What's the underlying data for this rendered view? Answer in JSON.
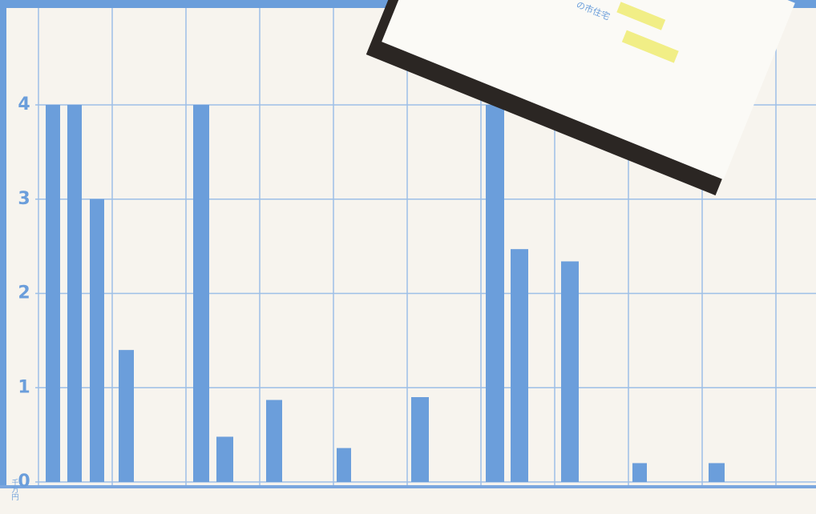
{
  "chart_data": {
    "type": "bar",
    "y_label": "千万円",
    "annotation": "の市住宅",
    "categories": [
      null,
      null,
      null,
      null,
      null,
      null,
      null,
      null,
      null,
      null,
      null,
      null,
      null,
      null
    ],
    "values": [
      4,
      4,
      3,
      1.4,
      4,
      0.48,
      0.87,
      0.36,
      0.9,
      4,
      2.47,
      2.34,
      0.2,
      0.2
    ],
    "color": "#6b9edb",
    "ylim": [
      0,
      4
    ],
    "yticks": [
      0,
      1,
      2,
      3,
      4
    ],
    "grid": true
  }
}
